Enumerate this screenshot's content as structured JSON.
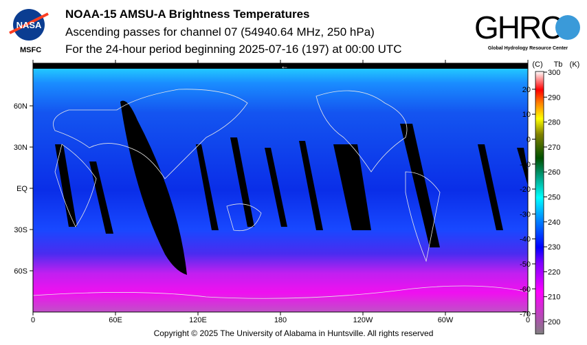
{
  "header": {
    "title": "NOAA-15 AMSU-A Brightness Temperatures",
    "subtitle1": "Ascending passes for channel 07 (54940.64 MHz, 250 hPa)",
    "subtitle2": "For the 24-hour period beginning 2025-07-16 (197) at 00:00 UTC"
  },
  "logos": {
    "nasa": "NASA",
    "msfc": "MSFC",
    "ghrc": "GHRC",
    "ghrc_full": "Global Hydrology Resource Center"
  },
  "footer": {
    "copyright": "Copyright © 2025 The University of Alabama in Huntsville.  All rights reserved"
  },
  "chart_data": {
    "type": "heatmap",
    "title": "NOAA-15 AMSU-A Brightness Temperatures",
    "variable": "Tb",
    "units": [
      "(C)",
      "Tb",
      "(K)"
    ],
    "x_ticks": [
      "0",
      "60E",
      "120E",
      "180",
      "120W",
      "60W",
      "0"
    ],
    "x_values": [
      0,
      60,
      120,
      180,
      240,
      300,
      360
    ],
    "y_ticks": [
      "60N",
      "30N",
      "EQ",
      "30S",
      "60S"
    ],
    "y_values": [
      60,
      30,
      0,
      -30,
      -60
    ],
    "colorbar_K": [
      300,
      290,
      280,
      270,
      260,
      250,
      240,
      230,
      220,
      210,
      200
    ],
    "colorbar_C": [
      20,
      10,
      0,
      -10,
      -20,
      -30,
      -40,
      -50,
      -60,
      -70
    ],
    "colorbar_range_K": [
      195,
      300
    ],
    "colors": [
      "#808080",
      "#c040c0",
      "#ff00ff",
      "#8000ff",
      "#0000ff",
      "#0080ff",
      "#00ffff",
      "#00a080",
      "#005000",
      "#808000",
      "#ffff00",
      "#ff8000",
      "#ff0000",
      "#ff8080",
      "#ffffff"
    ],
    "scan_direction_marker": "←"
  }
}
